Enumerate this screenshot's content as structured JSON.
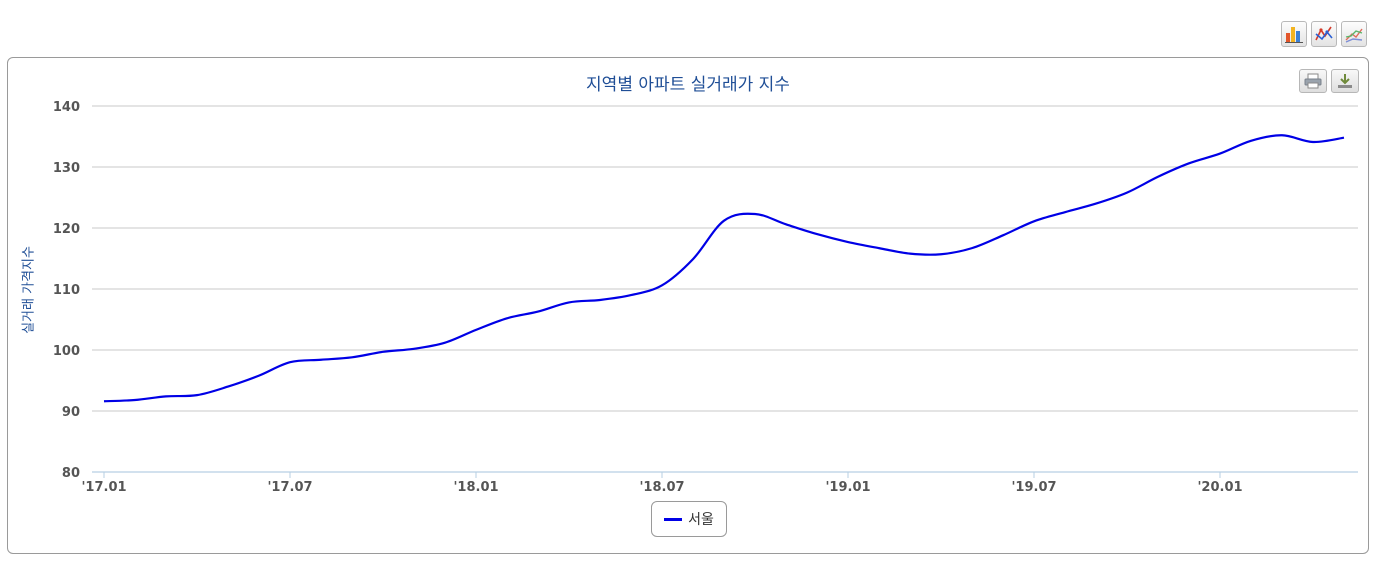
{
  "toolbar": {
    "buttons": [
      {
        "name": "bar-chart-icon"
      },
      {
        "name": "scatter-chart-icon"
      },
      {
        "name": "line-chart-icon"
      }
    ]
  },
  "panel_tools": [
    {
      "name": "print-icon"
    },
    {
      "name": "download-icon"
    }
  ],
  "chart_data": {
    "type": "line",
    "title": "지역별 아파트 실거래가 지수",
    "ylabel": "실거래 가격지수",
    "xlabel": "",
    "ylim": [
      80,
      140
    ],
    "yticks": [
      80,
      90,
      100,
      110,
      120,
      130,
      140
    ],
    "x": [
      "17.01",
      "17.02",
      "17.03",
      "17.04",
      "17.05",
      "17.06",
      "17.07",
      "17.08",
      "17.09",
      "17.10",
      "17.11",
      "17.12",
      "18.01",
      "18.02",
      "18.03",
      "18.04",
      "18.05",
      "18.06",
      "18.07",
      "18.08",
      "18.09",
      "18.10",
      "18.11",
      "18.12",
      "19.01",
      "19.02",
      "19.03",
      "19.04",
      "19.05",
      "19.06",
      "19.07",
      "19.08",
      "19.09",
      "19.10",
      "19.11",
      "19.12",
      "20.01",
      "20.02",
      "20.03",
      "20.04",
      "20.05"
    ],
    "xticks": [
      "'17.01",
      "'17.07",
      "'18.01",
      "'18.07",
      "'19.01",
      "'19.07",
      "'20.01"
    ],
    "series": [
      {
        "name": "서울",
        "color": "#0000e6",
        "values": [
          91.6,
          91.8,
          92.4,
          92.6,
          94.0,
          95.8,
          98.0,
          98.4,
          98.8,
          99.7,
          100.2,
          101.2,
          103.3,
          105.2,
          106.3,
          107.8,
          108.2,
          109.0,
          110.6,
          114.9,
          121.2,
          122.3,
          120.6,
          119.0,
          117.7,
          116.7,
          115.8,
          115.7,
          116.7,
          118.8,
          121.1,
          122.6,
          124.0,
          125.8,
          128.4,
          130.6,
          132.2,
          134.3,
          135.2,
          134.1,
          134.8
        ]
      }
    ],
    "grid": true,
    "legend": "bottom-center"
  }
}
